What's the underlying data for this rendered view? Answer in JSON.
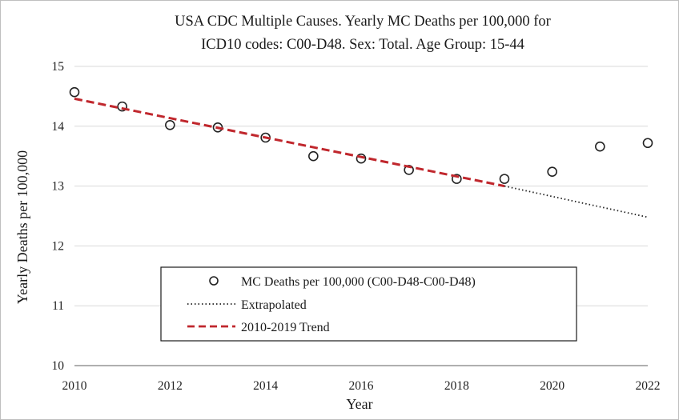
{
  "chart_data": {
    "type": "scatter",
    "title_lines": [
      "USA CDC Multiple Causes. Yearly MC Deaths per 100,000 for",
      "ICD10 codes: C00-D48. Sex: Total. Age Group: 15-44"
    ],
    "xlabel": "Year",
    "ylabel": "Yearly Deaths per 100,000",
    "xlim": [
      2010,
      2022
    ],
    "ylim": [
      10,
      15
    ],
    "x_ticks": [
      "2010",
      "2012",
      "2014",
      "2016",
      "2018",
      "2020",
      "2022"
    ],
    "y_ticks": [
      "10",
      "11",
      "12",
      "13",
      "14",
      "15"
    ],
    "grid": "horizontal",
    "legend_position": "bottom-center",
    "series": [
      {
        "name": "MC Deaths per 100,000 (C00-D48-C00-D48)",
        "style": "open-circle",
        "color": "#222222",
        "x": [
          2010,
          2011,
          2012,
          2013,
          2014,
          2015,
          2016,
          2017,
          2018,
          2019,
          2020,
          2021,
          2022
        ],
        "y": [
          14.57,
          14.33,
          14.02,
          13.98,
          13.81,
          13.5,
          13.46,
          13.27,
          13.12,
          13.12,
          13.24,
          13.66,
          13.72
        ]
      },
      {
        "name": "Extrapolated",
        "style": "dotted-line",
        "color": "#222222",
        "x": [
          2019,
          2022
        ],
        "y": [
          13.0,
          12.48
        ]
      },
      {
        "name": "2010-2019 Trend",
        "style": "dashed-line",
        "color": "#c0272d",
        "x": [
          2010,
          2019
        ],
        "y": [
          14.46,
          13.0
        ]
      }
    ]
  }
}
